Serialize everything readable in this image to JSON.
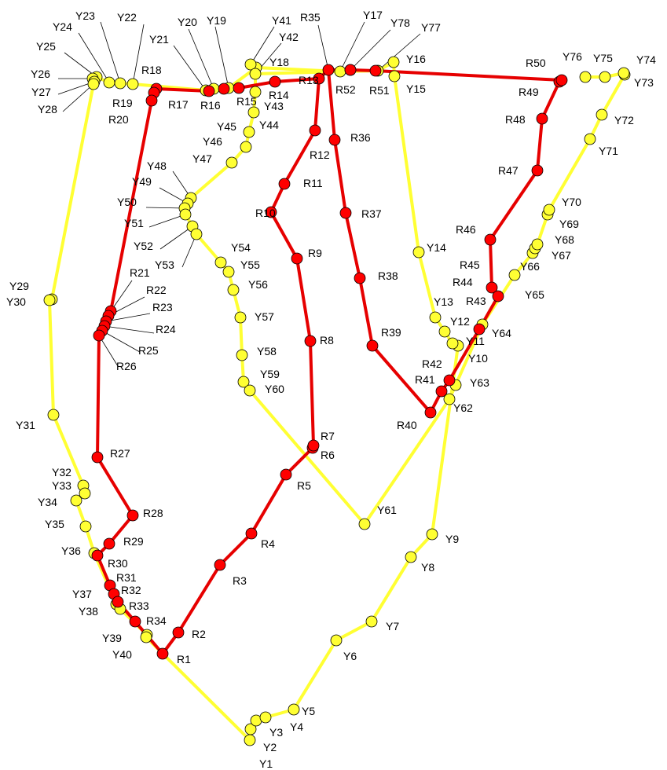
{
  "colors": {
    "red_path": "#e60000",
    "red_node": "#ff0000",
    "yellow_path": "#ffff33",
    "yellow_node": "#ffff33",
    "node_outline": "#000000"
  },
  "red_nodes": [
    "R1",
    "R2",
    "R3",
    "R4",
    "R5",
    "R6",
    "R7",
    "R8",
    "R9",
    "R10",
    "R11",
    "R12",
    "R13",
    "R14",
    "R15",
    "R16",
    "R17",
    "R18",
    "R19",
    "R20",
    "R21",
    "R22",
    "R23",
    "R24",
    "R25",
    "R26",
    "R27",
    "R28",
    "R29",
    "R30",
    "R31",
    "R32",
    "R33",
    "R34",
    "R35",
    "R36",
    "R37",
    "R38",
    "R39",
    "R40",
    "R41",
    "R42",
    "R43",
    "R44",
    "R45",
    "R46",
    "R47",
    "R48",
    "R49",
    "R50",
    "R51",
    "R52"
  ],
  "yellow_nodes": [
    "Y1",
    "Y2",
    "Y3",
    "Y4",
    "Y5",
    "Y6",
    "Y7",
    "Y8",
    "Y9",
    "Y10",
    "Y11",
    "Y12",
    "Y13",
    "Y14",
    "Y15",
    "Y16",
    "Y17",
    "Y18",
    "Y19",
    "Y20",
    "Y21",
    "Y22",
    "Y23",
    "Y24",
    "Y25",
    "Y26",
    "Y27",
    "Y28",
    "Y29",
    "Y30",
    "Y31",
    "Y32",
    "Y33",
    "Y34",
    "Y35",
    "Y36",
    "Y37",
    "Y38",
    "Y39",
    "Y40",
    "Y41",
    "Y42",
    "Y43",
    "Y44",
    "Y45",
    "Y46",
    "Y47",
    "Y48",
    "Y49",
    "Y50",
    "Y51",
    "Y52",
    "Y53",
    "Y54",
    "Y55",
    "Y56",
    "Y57",
    "Y58",
    "Y59",
    "Y60",
    "Y61",
    "Y62",
    "Y63",
    "Y64",
    "Y65",
    "Y66",
    "Y67",
    "Y68",
    "Y69",
    "Y70",
    "Y71",
    "Y72",
    "Y73",
    "Y74",
    "Y75",
    "Y76",
    "Y77",
    "Y78"
  ]
}
